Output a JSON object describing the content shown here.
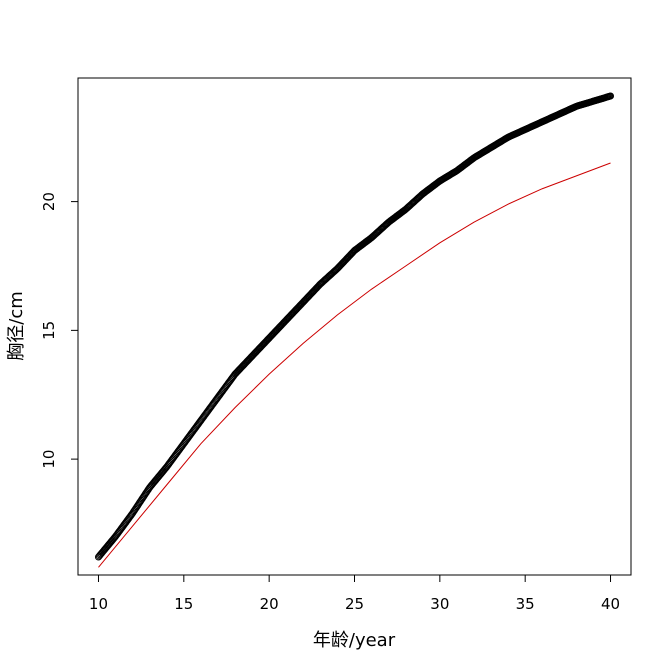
{
  "chart_data": {
    "type": "scatter",
    "title": "",
    "xlabel": "年龄/year",
    "ylabel": "胸径/cm",
    "xlim": [
      8.8,
      41.2
    ],
    "ylim": [
      5.5,
      24.8
    ],
    "x_ticks": [
      10,
      15,
      20,
      25,
      30,
      35,
      40
    ],
    "y_ticks": [
      10,
      15,
      20
    ],
    "grid": false,
    "legend": "none",
    "series": [
      {
        "kind": "points",
        "marker": "open-circle",
        "color": "#000000",
        "x": [
          10,
          11,
          12,
          13,
          14,
          15,
          16,
          17,
          18,
          19,
          20,
          21,
          22,
          23,
          24,
          25,
          26,
          27,
          28,
          29,
          30,
          31,
          32,
          33,
          34,
          35,
          36,
          37,
          38,
          39,
          40
        ],
        "y": [
          6.2,
          7.0,
          7.9,
          8.9,
          9.7,
          10.6,
          11.5,
          12.4,
          13.3,
          14.0,
          14.7,
          15.4,
          16.1,
          16.8,
          17.4,
          18.1,
          18.6,
          19.2,
          19.7,
          20.3,
          20.8,
          21.2,
          21.7,
          22.1,
          22.5,
          22.8,
          23.1,
          23.4,
          23.7,
          23.9,
          24.1
        ]
      },
      {
        "kind": "line",
        "color": "#cc0000",
        "x": [
          10,
          12,
          14,
          16,
          18,
          20,
          22,
          24,
          26,
          28,
          30,
          32,
          34,
          36,
          38,
          40
        ],
        "y": [
          5.8,
          7.4,
          9.0,
          10.6,
          12.0,
          13.3,
          14.5,
          15.6,
          16.6,
          17.5,
          18.4,
          19.2,
          19.9,
          20.5,
          21.0,
          21.5
        ]
      }
    ]
  }
}
